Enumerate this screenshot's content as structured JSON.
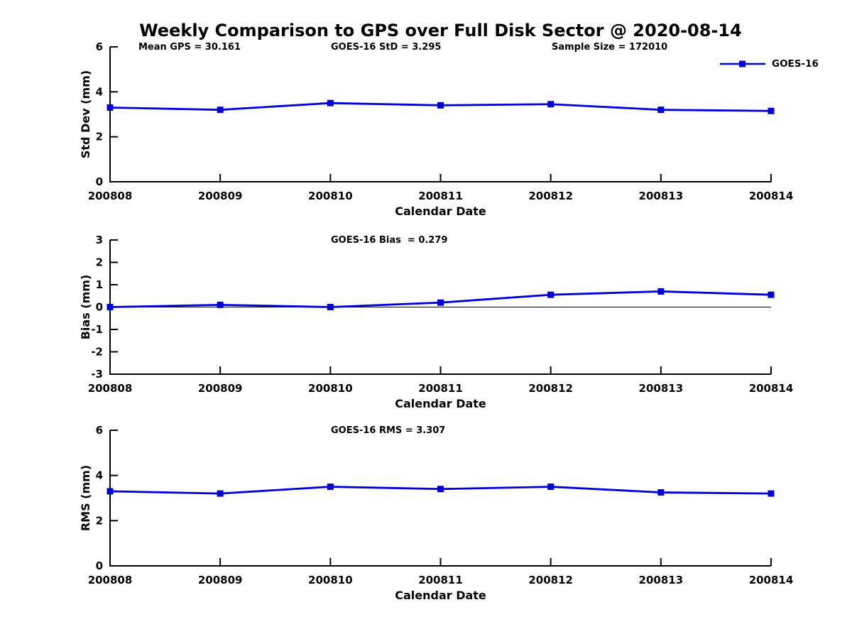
{
  "title": "Weekly Comparison to GPS over Full Disk Sector @ 2020-08-14",
  "header_annotations": [
    {
      "id": "mean-gps",
      "text": "Mean GPS = 30.161"
    },
    {
      "id": "goes16-std",
      "text": "GOES-16 StD = 3.295"
    },
    {
      "id": "sample-size",
      "text": "Sample Size = 172010"
    }
  ],
  "legend": {
    "label": "GOES-16",
    "position": "top-right-outside"
  },
  "colors": {
    "series": "#0000dd",
    "axis": "#000000",
    "text": "#000000",
    "background": "#ffffff"
  },
  "chart_data": [
    {
      "name": "std-dev",
      "type": "line",
      "xlabel": "Calendar Date",
      "ylabel": "Std Dev (mm)",
      "categories": [
        "200808",
        "200809",
        "200810",
        "200811",
        "200812",
        "200813",
        "200814"
      ],
      "series": [
        {
          "name": "GOES-16",
          "values": [
            3.3,
            3.2,
            3.5,
            3.4,
            3.45,
            3.2,
            3.15
          ]
        }
      ],
      "ylim": [
        0,
        6
      ],
      "yticks": [
        0,
        2,
        4,
        6
      ],
      "annotation": "",
      "zero_line": false,
      "grid": false,
      "marker": "square"
    },
    {
      "name": "bias",
      "type": "line",
      "xlabel": "Calendar Date",
      "ylabel": "Bias (mm)",
      "categories": [
        "200808",
        "200809",
        "200810",
        "200811",
        "200812",
        "200813",
        "200814"
      ],
      "series": [
        {
          "name": "GOES-16",
          "values": [
            0.0,
            0.1,
            0.0,
            0.2,
            0.55,
            0.7,
            0.55
          ]
        }
      ],
      "ylim": [
        -3,
        3
      ],
      "yticks": [
        3,
        2,
        1,
        0,
        -1,
        -2,
        -3
      ],
      "annotation": "GOES-16 Bias  = 0.279",
      "zero_line": true,
      "grid": false,
      "marker": "square"
    },
    {
      "name": "rms",
      "type": "line",
      "xlabel": "Calendar Date",
      "ylabel": "RMS (mm)",
      "categories": [
        "200808",
        "200809",
        "200810",
        "200811",
        "200812",
        "200813",
        "200814"
      ],
      "series": [
        {
          "name": "GOES-16",
          "values": [
            3.3,
            3.2,
            3.5,
            3.4,
            3.5,
            3.25,
            3.2
          ]
        }
      ],
      "ylim": [
        0,
        6
      ],
      "yticks": [
        0,
        2,
        4,
        6
      ],
      "annotation": "GOES-16 RMS = 3.307",
      "zero_line": false,
      "grid": false,
      "marker": "square"
    }
  ]
}
